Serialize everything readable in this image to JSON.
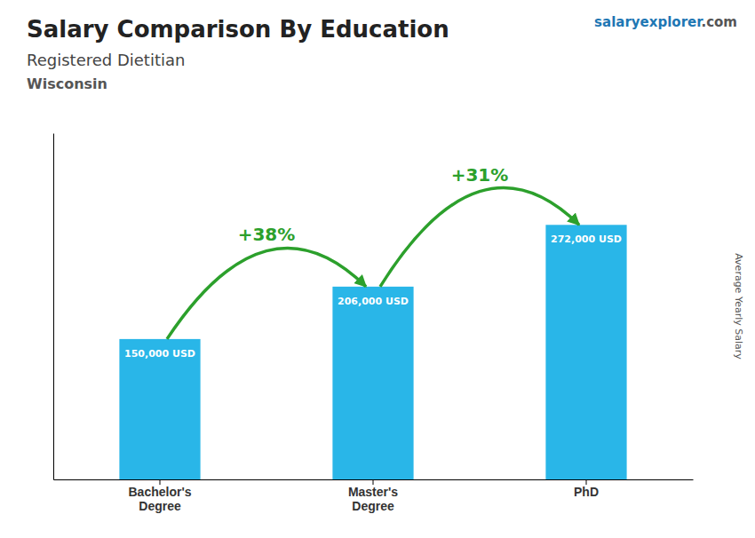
{
  "chart_data": {
    "type": "bar",
    "title": "Salary Comparison By Education",
    "subtitle": "Registered Dietitian",
    "location": "Wisconsin",
    "brand": [
      "salary",
      "explorer",
      ".com"
    ],
    "ylabel": "Average Yearly Salary",
    "categories": [
      "Bachelor's\nDegree",
      "Master's\nDegree",
      "PhD"
    ],
    "values": [
      150000,
      206000,
      272000
    ],
    "value_labels": [
      "150,000 USD",
      "206,000 USD",
      "272,000 USD"
    ],
    "data_labels": true,
    "color": "#29b6e8",
    "ylim": [
      0,
      370000
    ],
    "tick_labels": "x",
    "grid": false,
    "annotations": [
      "+38%",
      "+31%"
    ]
  }
}
